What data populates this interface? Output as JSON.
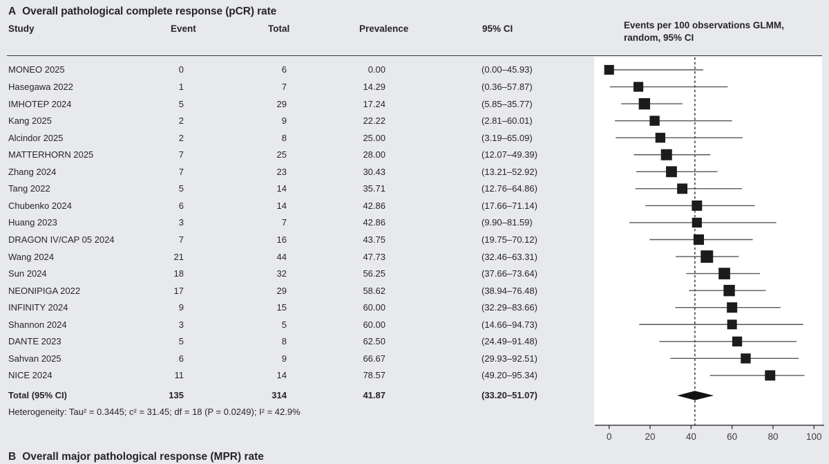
{
  "panel": {
    "label": "A",
    "title": "Overall pathological complete response (pCR) rate"
  },
  "columns": {
    "study": "Study",
    "event": "Event",
    "total": "Total",
    "prevalence": "Prevalence",
    "ci": "95% CI"
  },
  "plot_header": {
    "line1": "Events per 100 observations GLMM,",
    "line2": "random, 95% CI"
  },
  "chart_data": {
    "type": "forest",
    "x_axis": {
      "ticks": [
        0,
        20,
        40,
        60,
        80,
        100
      ],
      "xlim": [
        0,
        100
      ]
    },
    "dashed_line_x": 41.87,
    "studies": [
      {
        "name": "MONEO 2025",
        "event": "0",
        "total": "6",
        "prevalence": "0.00",
        "ci_text": "(0.00–45.93)",
        "est": 0.0,
        "lo": 0.0,
        "hi": 45.93
      },
      {
        "name": "Hasegawa 2022",
        "event": "1",
        "total": "7",
        "prevalence": "14.29",
        "ci_text": "(0.36–57.87)",
        "est": 14.29,
        "lo": 0.36,
        "hi": 57.87
      },
      {
        "name": "IMHOTEP 2024",
        "event": "5",
        "total": "29",
        "prevalence": "17.24",
        "ci_text": "(5.85–35.77)",
        "est": 17.24,
        "lo": 5.85,
        "hi": 35.77
      },
      {
        "name": "Kang 2025",
        "event": "2",
        "total": "9",
        "prevalence": "22.22",
        "ci_text": "(2.81–60.01)",
        "est": 22.22,
        "lo": 2.81,
        "hi": 60.01
      },
      {
        "name": "Alcindor 2025",
        "event": "2",
        "total": "8",
        "prevalence": "25.00",
        "ci_text": "(3.19–65.09)",
        "est": 25.0,
        "lo": 3.19,
        "hi": 65.09
      },
      {
        "name": "MATTERHORN 2025",
        "event": "7",
        "total": "25",
        "prevalence": "28.00",
        "ci_text": "(12.07–49.39)",
        "est": 28.0,
        "lo": 12.07,
        "hi": 49.39
      },
      {
        "name": "Zhang 2024",
        "event": "7",
        "total": "23",
        "prevalence": "30.43",
        "ci_text": "(13.21–52.92)",
        "est": 30.43,
        "lo": 13.21,
        "hi": 52.92
      },
      {
        "name": "Tang 2022",
        "event": "5",
        "total": "14",
        "prevalence": "35.71",
        "ci_text": "(12.76–64.86)",
        "est": 35.71,
        "lo": 12.76,
        "hi": 64.86
      },
      {
        "name": "Chubenko 2024",
        "event": "6",
        "total": "14",
        "prevalence": "42.86",
        "ci_text": "(17.66–71.14)",
        "est": 42.86,
        "lo": 17.66,
        "hi": 71.14
      },
      {
        "name": "Huang 2023",
        "event": "3",
        "total": "7",
        "prevalence": "42.86",
        "ci_text": "(9.90–81.59)",
        "est": 42.86,
        "lo": 9.9,
        "hi": 81.59
      },
      {
        "name": "DRAGON IV/CAP 05 2024",
        "event": "7",
        "total": "16",
        "prevalence": "43.75",
        "ci_text": "(19.75–70.12)",
        "est": 43.75,
        "lo": 19.75,
        "hi": 70.12
      },
      {
        "name": "Wang 2024",
        "event": "21",
        "total": "44",
        "prevalence": "47.73",
        "ci_text": "(32.46–63.31)",
        "est": 47.73,
        "lo": 32.46,
        "hi": 63.31
      },
      {
        "name": "Sun 2024",
        "event": "18",
        "total": "32",
        "prevalence": "56.25",
        "ci_text": "(37.66–73.64)",
        "est": 56.25,
        "lo": 37.66,
        "hi": 73.64
      },
      {
        "name": "NEONIPIGA 2022",
        "event": "17",
        "total": "29",
        "prevalence": "58.62",
        "ci_text": "(38.94–76.48)",
        "est": 58.62,
        "lo": 38.94,
        "hi": 76.48
      },
      {
        "name": "INFINITY 2024",
        "event": "9",
        "total": "15",
        "prevalence": "60.00",
        "ci_text": "(32.29–83.66)",
        "est": 60.0,
        "lo": 32.29,
        "hi": 83.66
      },
      {
        "name": "Shannon 2024",
        "event": "3",
        "total": "5",
        "prevalence": "60.00",
        "ci_text": "(14.66–94.73)",
        "est": 60.0,
        "lo": 14.66,
        "hi": 94.73
      },
      {
        "name": "DANTE 2023",
        "event": "5",
        "total": "8",
        "prevalence": "62.50",
        "ci_text": "(24.49–91.48)",
        "est": 62.5,
        "lo": 24.49,
        "hi": 91.48
      },
      {
        "name": "Sahvan 2025",
        "event": "6",
        "total": "9",
        "prevalence": "66.67",
        "ci_text": "(29.93–92.51)",
        "est": 66.67,
        "lo": 29.93,
        "hi": 92.51
      },
      {
        "name": "NICE 2024",
        "event": "11",
        "total": "14",
        "prevalence": "78.57",
        "ci_text": "(49.20–95.34)",
        "est": 78.57,
        "lo": 49.2,
        "hi": 95.34
      }
    ],
    "total": {
      "name": "Total (95% CI)",
      "event": "135",
      "total": "314",
      "prevalence": "41.87",
      "ci_text": "(33.20–51.07)",
      "est": 41.87,
      "lo": 33.2,
      "hi": 51.07
    },
    "heterogeneity": "Heterogeneity: Tau² = 0.3445; c² = 31.45; df = 18 (P = 0.0249); I² = 42.9%"
  },
  "next_panel": {
    "label": "B",
    "title": "Overall major pathological response (MPR) rate"
  },
  "colors": {
    "background": "#e8e9ed",
    "plot_background": "#ffffff",
    "text": "#26242b",
    "rule": "#35343b",
    "ci_line": "#55565a",
    "square": "#1d1b1d",
    "diamond": "#141214",
    "dashed_line": "#2a292e",
    "axis": "#3b3a42"
  }
}
